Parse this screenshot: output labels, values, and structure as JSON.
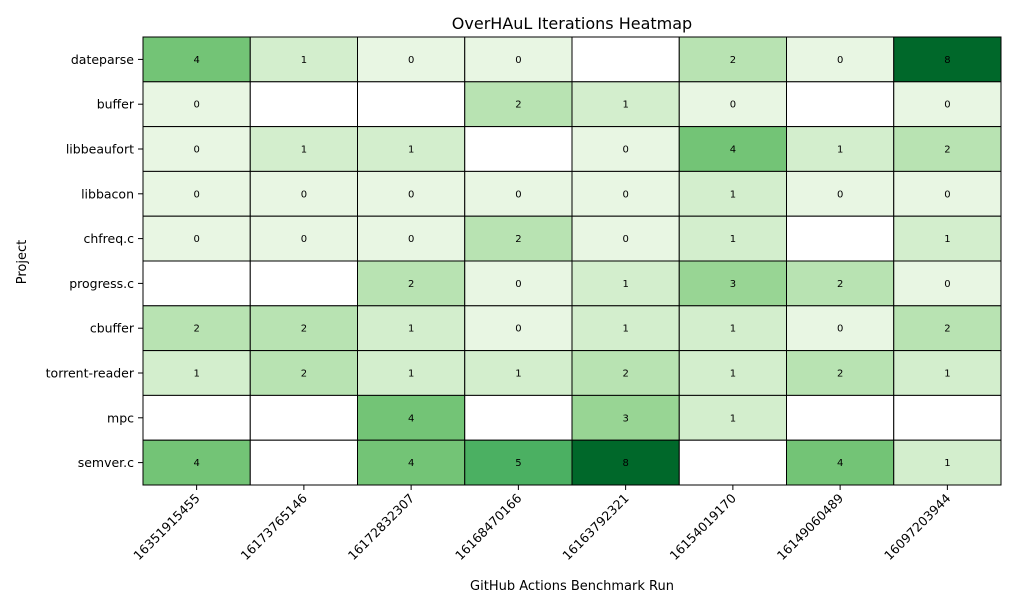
{
  "chart_data": {
    "type": "heatmap",
    "title": "OverHAuL Iterations Heatmap",
    "xlabel": "GitHub Actions Benchmark Run",
    "ylabel": "Project",
    "x_categories": [
      "16351915455",
      "16173765146",
      "16172832307",
      "16168470166",
      "16163792321",
      "16154019170",
      "16149060489",
      "16097203944"
    ],
    "y_categories": [
      "dateparse",
      "buffer",
      "libbeaufort",
      "libbacon",
      "chfreq.c",
      "progress.c",
      "cbuffer",
      "torrent-reader",
      "mpc",
      "semver.c"
    ],
    "values": [
      [
        4,
        1,
        0,
        0,
        null,
        2,
        0,
        8
      ],
      [
        0,
        null,
        null,
        2,
        1,
        0,
        null,
        0
      ],
      [
        0,
        1,
        1,
        null,
        0,
        4,
        1,
        2
      ],
      [
        0,
        0,
        0,
        0,
        0,
        1,
        0,
        0
      ],
      [
        0,
        0,
        0,
        2,
        0,
        1,
        null,
        1
      ],
      [
        null,
        null,
        2,
        0,
        1,
        3,
        2,
        0
      ],
      [
        2,
        2,
        1,
        0,
        1,
        1,
        0,
        2
      ],
      [
        1,
        2,
        1,
        1,
        2,
        1,
        2,
        1
      ],
      [
        null,
        null,
        4,
        null,
        3,
        1,
        null,
        null
      ],
      [
        4,
        null,
        4,
        5,
        8,
        null,
        4,
        1
      ]
    ],
    "colormap": "Greens",
    "value_range": [
      0,
      8
    ],
    "colors": {
      "0": "#e8f6e3",
      "1": "#d3eecd",
      "2": "#b8e3b2",
      "3": "#98d594",
      "4": "#73c476",
      "5": "#4bb062",
      "8": "#00682a",
      "missing": "#ffffff",
      "border": "#000000"
    },
    "grid": true,
    "legend": "none"
  }
}
